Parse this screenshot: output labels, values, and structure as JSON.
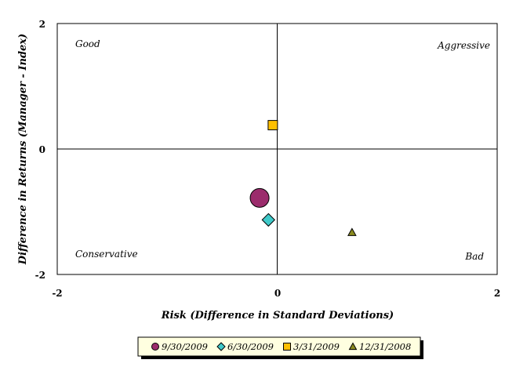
{
  "chart_data": {
    "type": "scatter",
    "title": "",
    "xlabel": "Risk (Difference in Standard Deviations)",
    "ylabel": "Difference in Returns (Manager - Index)",
    "xlim": [
      -2,
      2
    ],
    "ylim": [
      -2,
      2
    ],
    "x_ticks": [
      "-2",
      "0",
      "2"
    ],
    "y_ticks": [
      "2",
      "0",
      "-2"
    ],
    "grid": false,
    "legend_position": "bottom",
    "quadrant_labels": {
      "top_left": "Good",
      "top_right": "Aggressive",
      "bottom_left": "Conservative",
      "bottom_right": "Bad"
    },
    "series": [
      {
        "name": "9/30/2009",
        "marker": "circle",
        "color": "#9b2c6c",
        "x": -0.16,
        "y": -0.78
      },
      {
        "name": "6/30/2009",
        "marker": "diamond",
        "color": "#3fc9c9",
        "x": -0.08,
        "y": -1.13
      },
      {
        "name": "3/31/2009",
        "marker": "square",
        "color": "#ffc000",
        "x": -0.04,
        "y": 0.38
      },
      {
        "name": "12/31/2008",
        "marker": "triangle",
        "color": "#8b8b1f",
        "x": 0.68,
        "y": -1.33
      }
    ]
  }
}
